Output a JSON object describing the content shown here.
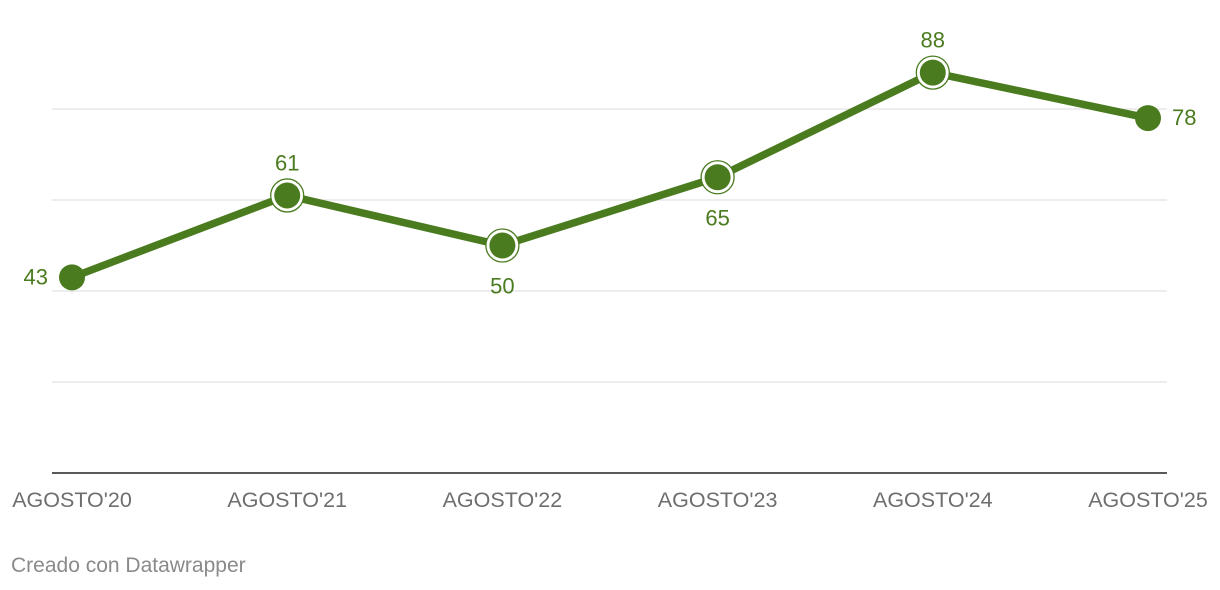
{
  "chart_data": {
    "type": "line",
    "categories": [
      "AGOSTO'20",
      "AGOSTO'21",
      "AGOSTO'22",
      "AGOSTO'23",
      "AGOSTO'24",
      "AGOSTO'25"
    ],
    "series": [
      {
        "values": [
          43,
          61,
          50,
          65,
          88,
          78
        ]
      }
    ],
    "ylim": [
      0,
      100
    ],
    "y_gridlines": [
      20,
      40,
      60,
      80
    ],
    "grid": true,
    "legend": "none",
    "color": "#4a7b1f",
    "data_labels": [
      "43",
      "61",
      "50",
      "65",
      "88",
      "78"
    ]
  },
  "footer": {
    "credit": "Creado con Datawrapper"
  }
}
